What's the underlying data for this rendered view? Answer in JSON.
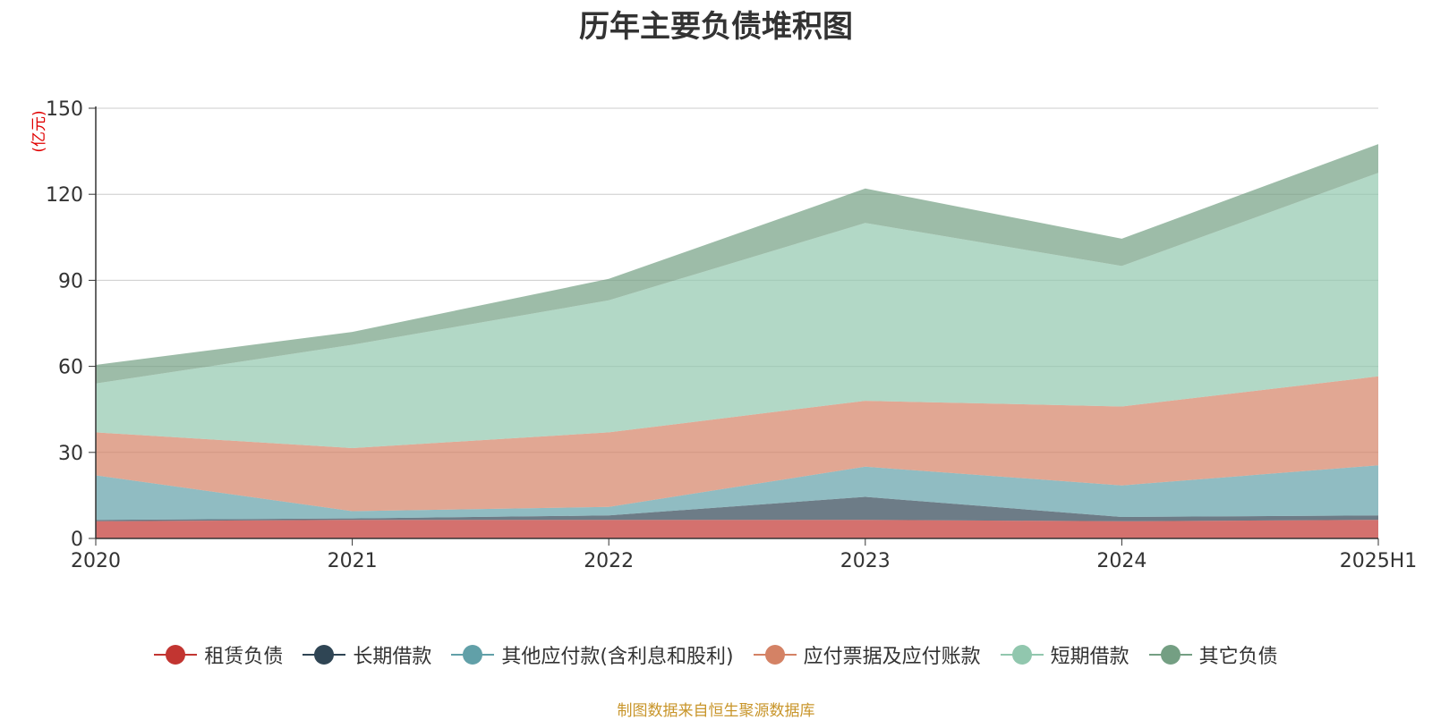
{
  "title": "历年主要负债堆积图",
  "source_note": "制图数据来自恒生聚源数据库",
  "chart_data": {
    "type": "area",
    "stacked": true,
    "title": "历年主要负债堆积图",
    "ylabel": "(亿元)",
    "xlabel": "",
    "ylim": [
      0,
      150
    ],
    "yticks": [
      0,
      30,
      60,
      90,
      120,
      150
    ],
    "grid": true,
    "legend_position": "bottom",
    "categories": [
      "2020",
      "2021",
      "2022",
      "2023",
      "2024",
      "2025H1"
    ],
    "series": [
      {
        "name": "租赁负债",
        "color": "#c23531",
        "values": [
          6.0,
          6.5,
          6.5,
          6.5,
          6.0,
          6.5
        ]
      },
      {
        "name": "长期借款",
        "color": "#2f4554",
        "values": [
          0.5,
          0.5,
          1.5,
          8.0,
          1.5,
          1.5
        ]
      },
      {
        "name": "其他应付款(含利息和股利)",
        "color": "#61a0a8",
        "values": [
          15.5,
          2.5,
          3.0,
          10.5,
          11.0,
          17.5
        ]
      },
      {
        "name": "应付票据及应付账款",
        "color": "#d48265",
        "values": [
          15.0,
          22.0,
          26.0,
          23.0,
          27.5,
          31.0
        ]
      },
      {
        "name": "短期借款",
        "color": "#91c7ae",
        "values": [
          17.0,
          36.0,
          46.0,
          62.0,
          49.0,
          71.0
        ]
      },
      {
        "name": "其它负债",
        "color": "#749f83",
        "values": [
          6.5,
          4.5,
          7.5,
          12.0,
          9.5,
          10.0
        ]
      }
    ]
  }
}
